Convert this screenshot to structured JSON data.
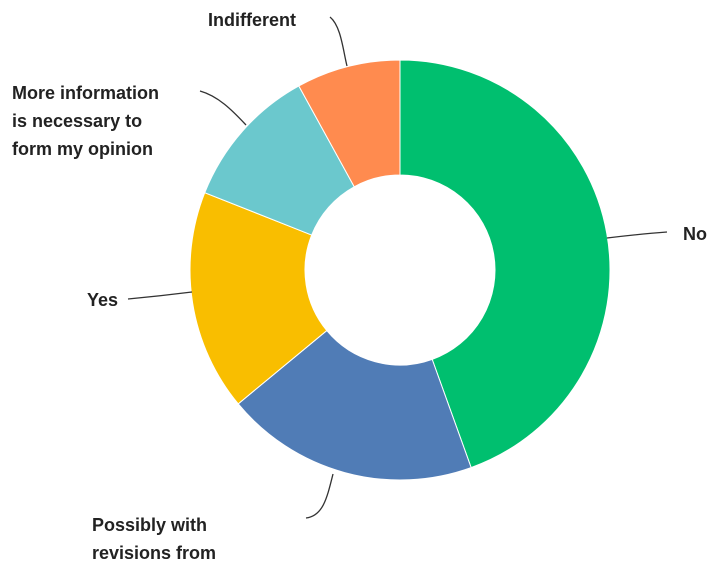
{
  "chart_data": {
    "type": "pie",
    "donut": true,
    "categories": [
      "No",
      "Possibly with revisions from",
      "Yes",
      "More information is necessary to form my opinion",
      "Indifferent"
    ],
    "values": [
      44.5,
      19.5,
      17,
      11,
      8
    ],
    "colors": [
      "#00bf6f",
      "#507cb6",
      "#f9be00",
      "#6bc8cd",
      "#ff8b4f"
    ],
    "labels": [
      {
        "lines": [
          "No"
        ]
      },
      {
        "lines": [
          "Possibly with",
          "revisions from"
        ]
      },
      {
        "lines": [
          "Yes"
        ]
      },
      {
        "lines": [
          "More information",
          "is necessary to",
          "form my opinion"
        ]
      },
      {
        "lines": [
          "Indifferent"
        ]
      }
    ],
    "title": "",
    "legend": "none"
  }
}
